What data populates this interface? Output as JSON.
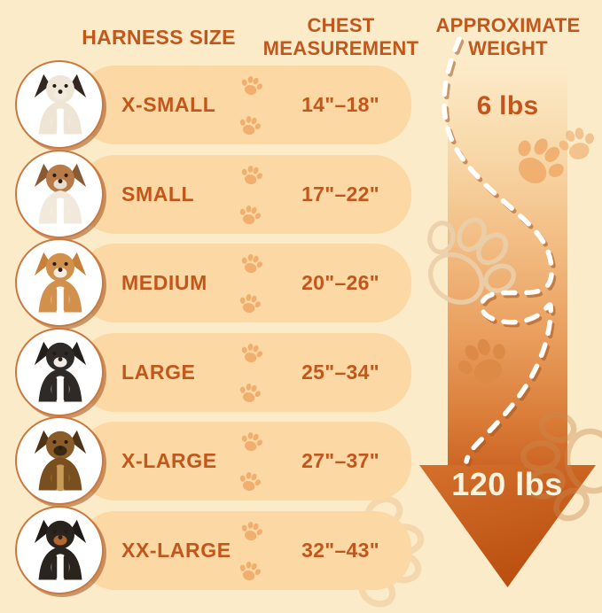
{
  "columns": {
    "harness_size": "HARNESS SIZE",
    "chest_measurement_line1": "CHEST",
    "chest_measurement_line2": "MEASUREMENT",
    "approximate_weight_line1": "APPROXIMATE",
    "approximate_weight_line2": "WEIGHT"
  },
  "rows": [
    {
      "size": "X-SMALL",
      "chest": "14\"–18\"",
      "icon": "papillon-dog-photo",
      "dog": {
        "body": "#efe5d4",
        "head": "#f0e6d8",
        "ear": "#332721",
        "chest": "#ffffff",
        "muzzle": "#f4ece0"
      }
    },
    {
      "size": "SMALL",
      "chest": "17\"–22\"",
      "icon": "jack-russell-terrier-dog-photo",
      "dog": {
        "body": "#f0e9dc",
        "head": "#b87a46",
        "ear": "#8a5a33",
        "chest": "#ffffff",
        "muzzle": "#e9decb"
      }
    },
    {
      "size": "MEDIUM",
      "chest": "20\"–26\"",
      "icon": "corgi-dog-photo",
      "dog": {
        "body": "#d1914c",
        "head": "#d1914c",
        "ear": "#c77f3a",
        "chest": "#ffffff",
        "muzzle": "#f5ecdd"
      }
    },
    {
      "size": "LARGE",
      "chest": "25\"–34\"",
      "icon": "border-collie-dog-photo",
      "dog": {
        "body": "#2e2a27",
        "head": "#2e2a27",
        "ear": "#221f1d",
        "chest": "#ffffff",
        "muzzle": "#f0ece5"
      }
    },
    {
      "size": "X-LARGE",
      "chest": "27\"–37\"",
      "icon": "german-shepherd-dog-photo",
      "dog": {
        "body": "#7a4f20",
        "head": "#8a5c28",
        "ear": "#4d3318",
        "chest": "#c89b58",
        "muzzle": "#3a2a14"
      }
    },
    {
      "size": "XX-LARGE",
      "chest": "32\"–43\"",
      "icon": "bernese-mountain-dog-photo",
      "dog": {
        "body": "#2a241f",
        "head": "#2a241f",
        "ear": "#201b17",
        "chest": "#ffffff",
        "muzzle": "#b5652f"
      }
    }
  ],
  "weight_range": {
    "min_label": "6 lbs",
    "max_label": "120 lbs"
  },
  "colors": {
    "accent": "#c2571c",
    "background": "#fcebc9",
    "row_band": "#fbd8a4",
    "paw_fill": "#efa865",
    "arrow_gradient_top": "#f8d8a8",
    "arrow_gradient_bottom": "#cd6525",
    "arrowhead_top": "#d4702c",
    "arrowhead_bottom": "#ba4f10",
    "weight_max_text": "#fdf2da",
    "dash_line": "#ffffff",
    "circle_ring": "#c97940"
  },
  "chart_data": {
    "type": "table",
    "columns": [
      "HARNESS SIZE",
      "CHEST MEASUREMENT",
      "APPROXIMATE WEIGHT"
    ],
    "rows": [
      {
        "harness_size": "X-SMALL",
        "chest_measurement": "14\"–18\""
      },
      {
        "harness_size": "SMALL",
        "chest_measurement": "17\"–22\""
      },
      {
        "harness_size": "MEDIUM",
        "chest_measurement": "20\"–26\""
      },
      {
        "harness_size": "LARGE",
        "chest_measurement": "25\"–34\""
      },
      {
        "harness_size": "X-LARGE",
        "chest_measurement": "27\"–37\""
      },
      {
        "harness_size": "XX-LARGE",
        "chest_measurement": "32\"–43\""
      }
    ],
    "approximate_weight_scale": {
      "top_value": "6 lbs",
      "bottom_value": "120 lbs",
      "direction": "increases downward along arrow"
    }
  }
}
